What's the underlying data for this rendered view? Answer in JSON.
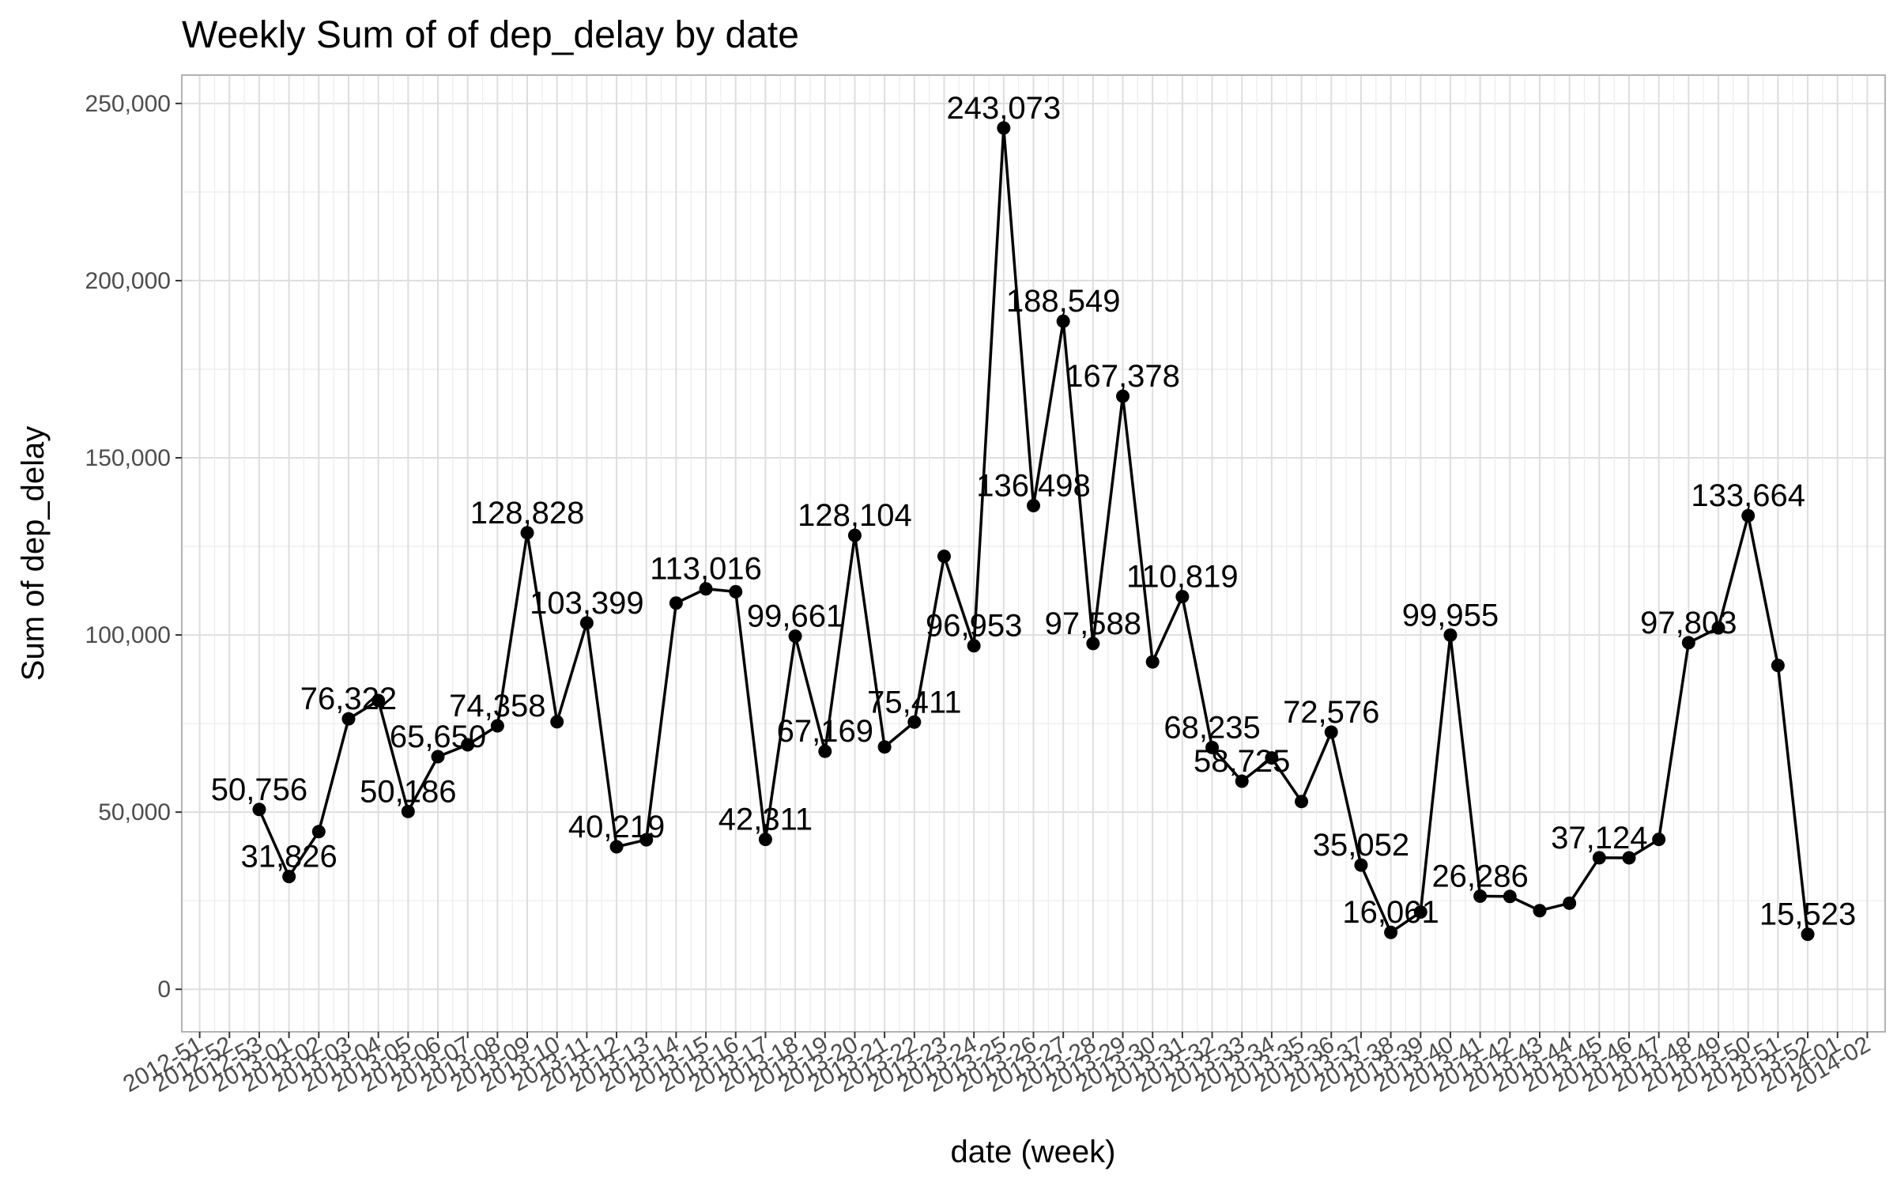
{
  "chart_data": {
    "type": "line",
    "title": "Weekly Sum of of dep_delay by date",
    "xlabel": "date (week)",
    "ylabel": "Sum of dep_delay",
    "ylim": [
      -12000,
      258000
    ],
    "yticks": [
      0,
      50000,
      100000,
      150000,
      200000,
      250000
    ],
    "ytick_labels": [
      "0",
      "50,000",
      "100,000",
      "150,000",
      "200,000",
      "250,000"
    ],
    "x_tick_labels": [
      "2012-51",
      "2012-52",
      "2012-53",
      "2013-01",
      "2013-02",
      "2013-03",
      "2013-04",
      "2013-05",
      "2013-06",
      "2013-07",
      "2013-08",
      "2013-09",
      "2013-10",
      "2013-11",
      "2013-12",
      "2013-13",
      "2013-14",
      "2013-15",
      "2013-16",
      "2013-17",
      "2013-18",
      "2013-19",
      "2013-20",
      "2013-21",
      "2013-22",
      "2013-23",
      "2013-24",
      "2013-25",
      "2013-26",
      "2013-27",
      "2013-28",
      "2013-29",
      "2013-30",
      "2013-31",
      "2013-32",
      "2013-33",
      "2013-34",
      "2013-35",
      "2013-36",
      "2013-37",
      "2013-38",
      "2013-39",
      "2013-40",
      "2013-41",
      "2013-42",
      "2013-43",
      "2013-44",
      "2013-45",
      "2013-46",
      "2013-47",
      "2013-48",
      "2013-49",
      "2013-50",
      "2013-51",
      "2013-52",
      "2014-01",
      "2014-02"
    ],
    "x": [
      "2012-53",
      "2013-01",
      "2013-02",
      "2013-03",
      "2013-04",
      "2013-05",
      "2013-06",
      "2013-07",
      "2013-08",
      "2013-09",
      "2013-10",
      "2013-11",
      "2013-12",
      "2013-13",
      "2013-14",
      "2013-15",
      "2013-16",
      "2013-17",
      "2013-18",
      "2013-19",
      "2013-20",
      "2013-21",
      "2013-22",
      "2013-23",
      "2013-24",
      "2013-25",
      "2013-26",
      "2013-27",
      "2013-28",
      "2013-29",
      "2013-30",
      "2013-31",
      "2013-32",
      "2013-33",
      "2013-34",
      "2013-35",
      "2013-36",
      "2013-37",
      "2013-38",
      "2013-39",
      "2013-40",
      "2013-41",
      "2013-42",
      "2013-43",
      "2013-44",
      "2013-45",
      "2013-46",
      "2013-47",
      "2013-48",
      "2013-49",
      "2013-50",
      "2013-51",
      "2013-52"
    ],
    "series": [
      {
        "values": [
          50756,
          31826,
          44500,
          76322,
          81500,
          50186,
          65650,
          69000,
          74358,
          128828,
          75500,
          103399,
          40219,
          42200,
          109000,
          113016,
          112200,
          42311,
          99661,
          67169,
          128104,
          68400,
          75411,
          122200,
          96953,
          243073,
          136498,
          188549,
          97588,
          167378,
          92400,
          110819,
          68235,
          58725,
          65300,
          53000,
          72576,
          35052,
          16061,
          21800,
          99955,
          26286,
          26200,
          22200,
          24300,
          37124,
          37100,
          42300,
          97803,
          102000,
          133664,
          91400,
          15523
        ],
        "labels": [
          "50,756",
          "31,826",
          "",
          "76,322",
          "",
          "50,186",
          "65,650",
          "",
          "74,358",
          "128,828",
          "",
          "103,399",
          "40,219",
          "",
          "",
          "113,016",
          "",
          "42,311",
          "99,661",
          "67,169",
          "128,104",
          "",
          "75,411",
          "",
          "96,953",
          "243,073",
          "136,498",
          "188,549",
          "97,588",
          "167,378",
          "",
          "110,819",
          "68,235",
          "58,725",
          "",
          "",
          "72,576",
          "35,052",
          "16,061",
          "",
          "99,955",
          "26,286",
          "",
          "",
          "",
          "37,124",
          "",
          "",
          "97,803",
          "",
          "133,664",
          "",
          "15,523"
        ]
      }
    ],
    "grid": true,
    "line_color": "#000000",
    "grid_color": "#dedede",
    "panel_border_color": "#b3b3b3"
  }
}
